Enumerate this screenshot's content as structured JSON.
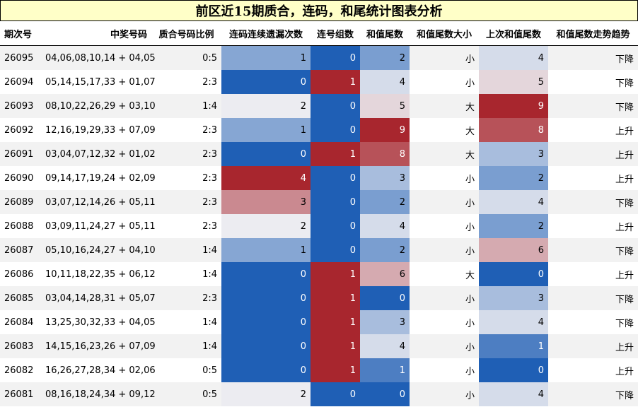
{
  "title": "前区近15期质合，连码，和尾统计图表分析",
  "chart_data": {
    "type": "table",
    "columns": [
      "期次号",
      "中奖号码",
      "质合号码比例",
      "连码连续遗漏次数",
      "连号组数",
      "和值尾数",
      "和值尾数大小",
      "上次和值尾数",
      "和值尾数走势趋势"
    ],
    "rows": [
      [
        "26095",
        "04,06,08,10,14 + 04,05",
        "0:5",
        1,
        0,
        2,
        "小",
        4,
        "下降"
      ],
      [
        "26094",
        "05,14,15,17,33 + 01,07",
        "2:3",
        0,
        1,
        4,
        "小",
        5,
        "下降"
      ],
      [
        "26093",
        "08,10,22,26,29 + 03,10",
        "1:4",
        2,
        0,
        5,
        "大",
        9,
        "下降"
      ],
      [
        "26092",
        "12,16,19,29,33 + 07,09",
        "2:3",
        1,
        0,
        9,
        "大",
        8,
        "上升"
      ],
      [
        "26091",
        "03,04,07,12,32 + 01,02",
        "2:3",
        0,
        1,
        8,
        "大",
        3,
        "上升"
      ],
      [
        "26090",
        "09,14,17,19,24 + 02,09",
        "2:3",
        4,
        0,
        3,
        "小",
        2,
        "上升"
      ],
      [
        "26089",
        "03,07,12,14,26 + 05,11",
        "2:3",
        3,
        0,
        2,
        "小",
        4,
        "下降"
      ],
      [
        "26088",
        "03,09,11,24,27 + 05,11",
        "2:3",
        2,
        0,
        4,
        "小",
        2,
        "上升"
      ],
      [
        "26087",
        "05,10,16,24,27 + 04,10",
        "1:4",
        1,
        0,
        2,
        "小",
        6,
        "下降"
      ],
      [
        "26086",
        "10,11,18,22,35 + 06,12",
        "1:4",
        0,
        1,
        6,
        "大",
        0,
        "上升"
      ],
      [
        "26085",
        "03,04,14,28,31 + 05,07",
        "2:3",
        0,
        1,
        0,
        "小",
        3,
        "下降"
      ],
      [
        "26084",
        "13,25,30,32,33 + 04,05",
        "1:4",
        0,
        1,
        3,
        "小",
        4,
        "下降"
      ],
      [
        "26083",
        "14,15,16,23,26 + 07,09",
        "1:4",
        0,
        1,
        4,
        "小",
        1,
        "上升"
      ],
      [
        "26082",
        "16,26,27,28,34 + 02,06",
        "0:5",
        0,
        1,
        1,
        "小",
        0,
        "上升"
      ],
      [
        "26081",
        "08,16,18,24,34 + 09,12",
        "0:5",
        2,
        0,
        0,
        "小",
        4,
        "下降"
      ]
    ],
    "heatmap_columns": [
      3,
      4,
      5,
      7
    ],
    "colormap": [
      "#1f5fb5",
      "#ececf1",
      "#a8262e"
    ]
  }
}
